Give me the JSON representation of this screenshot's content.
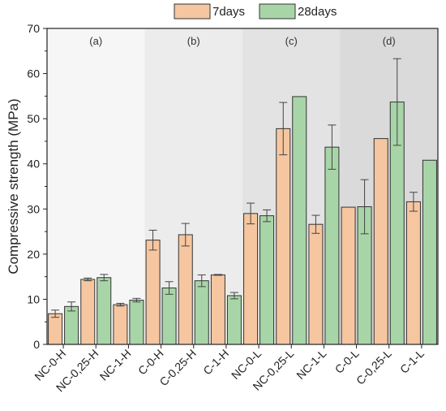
{
  "chart_data": {
    "type": "bar",
    "ylabel": "Compressive strength (MPa)",
    "ylim": [
      0,
      70
    ],
    "yticks": [
      0,
      10,
      20,
      30,
      40,
      50,
      60,
      70
    ],
    "legend_position": "top",
    "categories": [
      "NC-0-H",
      "NC-0,25-H",
      "NC-1-H",
      "C-0-H",
      "C-0,25-H",
      "C-1-H",
      "NC-0-L",
      "NC-0,25-L",
      "NC-1-L",
      "C-0-L",
      "C-0,25-L",
      "C-1-L"
    ],
    "series": [
      {
        "name": "7days",
        "color": "#f5c6a0",
        "values": [
          6.8,
          14.4,
          8.8,
          23.1,
          24.3,
          15.4,
          29.0,
          47.8,
          26.6,
          30.4,
          45.6,
          31.6
        ],
        "errors": [
          0.8,
          0.3,
          0.3,
          2.2,
          2.5,
          0.1,
          2.3,
          5.8,
          2.0,
          0.0,
          0.0,
          2.1
        ]
      },
      {
        "name": "28days",
        "color": "#a8d5a8",
        "values": [
          8.4,
          14.8,
          9.8,
          12.5,
          14.1,
          10.8,
          28.5,
          54.9,
          43.7,
          30.5,
          53.7,
          40.8
        ],
        "errors": [
          1.0,
          0.7,
          0.4,
          1.4,
          1.3,
          0.7,
          1.3,
          0.0,
          4.9,
          6.0,
          9.6,
          0.0
        ]
      }
    ],
    "panels": [
      {
        "label": "(a)",
        "start": 0,
        "end": 2,
        "shade": "#f6f6f6"
      },
      {
        "label": "(b)",
        "start": 3,
        "end": 5,
        "shade": "#ececec"
      },
      {
        "label": "(c)",
        "start": 6,
        "end": 8,
        "shade": "#e3e3e3"
      },
      {
        "label": "(d)",
        "start": 9,
        "end": 11,
        "shade": "#dadada"
      }
    ]
  }
}
